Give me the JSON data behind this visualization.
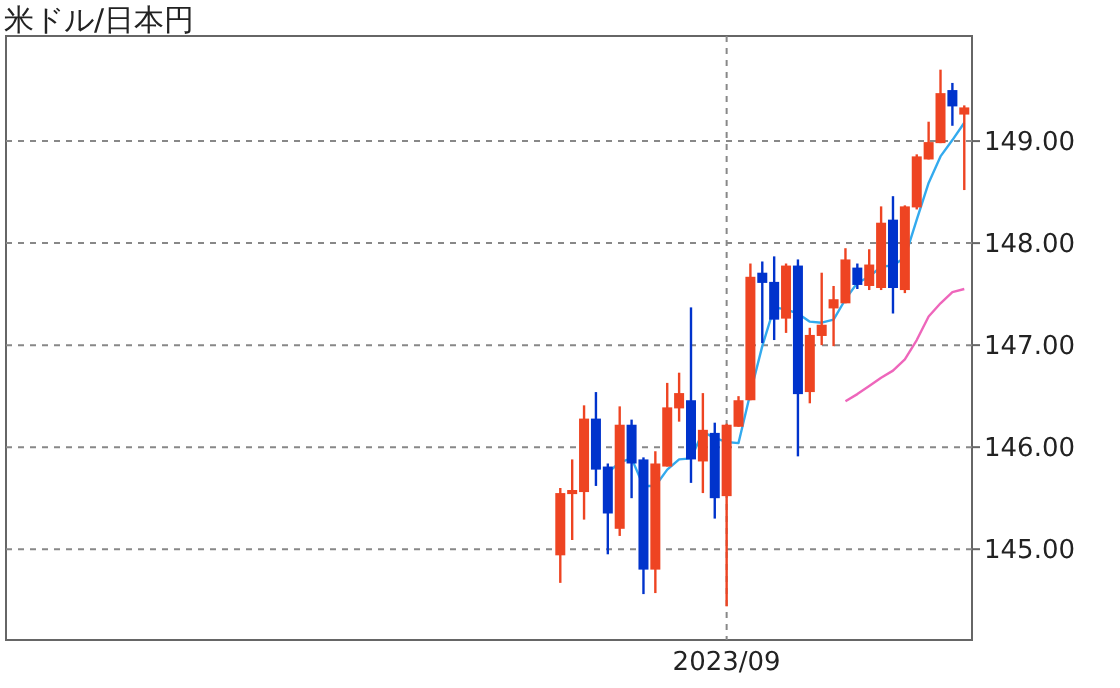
{
  "chart_data": {
    "type": "candlestick",
    "title": "米ドル/日本円",
    "categories": [
      null,
      null,
      null,
      null,
      null,
      null,
      null,
      null,
      null,
      null,
      null,
      null,
      null,
      null,
      null,
      null,
      null,
      null,
      null,
      null,
      null,
      null,
      null,
      null,
      null,
      null,
      null,
      null,
      null,
      null,
      null,
      null,
      null,
      null,
      null,
      null,
      null,
      null,
      null,
      null,
      null,
      null,
      null,
      null,
      null,
      null,
      null,
      null,
      null,
      null,
      null,
      null,
      null,
      null,
      null,
      null,
      null,
      null,
      null,
      null,
      "2023/09",
      null,
      null,
      null,
      null,
      null,
      null,
      null,
      null,
      null,
      null,
      null,
      null,
      null,
      null,
      null,
      null,
      null,
      null,
      null,
      null
    ],
    "ohlc": [
      null,
      null,
      null,
      null,
      null,
      null,
      null,
      null,
      null,
      null,
      null,
      null,
      null,
      null,
      null,
      null,
      null,
      null,
      null,
      null,
      null,
      null,
      null,
      null,
      null,
      null,
      null,
      null,
      null,
      null,
      null,
      null,
      null,
      null,
      null,
      null,
      null,
      null,
      null,
      null,
      null,
      null,
      null,
      null,
      null,
      null,
      [
        144.94,
        145.6,
        144.67,
        145.55
      ],
      [
        145.54,
        145.88,
        145.09,
        145.58
      ],
      [
        145.56,
        146.41,
        145.29,
        146.28
      ],
      [
        146.28,
        146.54,
        145.62,
        145.78
      ],
      [
        145.81,
        145.84,
        144.95,
        145.35
      ],
      [
        145.2,
        146.4,
        145.13,
        146.22
      ],
      [
        146.22,
        146.27,
        145.5,
        145.84
      ],
      [
        145.88,
        145.9,
        144.56,
        144.8
      ],
      [
        144.8,
        145.96,
        144.57,
        145.84
      ],
      [
        145.81,
        146.63,
        145.81,
        146.39
      ],
      [
        146.38,
        146.73,
        146.25,
        146.53
      ],
      [
        146.46,
        147.37,
        145.65,
        145.88
      ],
      [
        145.86,
        146.53,
        145.55,
        146.17
      ],
      [
        146.14,
        146.24,
        145.3,
        145.5
      ],
      [
        145.52,
        146.23,
        144.44,
        146.22
      ],
      [
        146.2,
        146.5,
        146.2,
        146.46
      ],
      [
        146.46,
        147.8,
        146.46,
        147.67
      ],
      [
        147.71,
        147.82,
        147.02,
        147.61
      ],
      [
        147.62,
        147.87,
        147.05,
        147.25
      ],
      [
        147.26,
        147.8,
        147.12,
        147.78
      ],
      [
        147.78,
        147.84,
        145.91,
        146.52
      ],
      [
        146.54,
        147.17,
        146.43,
        147.1
      ],
      [
        147.09,
        147.71,
        147.0,
        147.2
      ],
      [
        147.36,
        147.58,
        146.99,
        147.45
      ],
      [
        147.41,
        147.95,
        147.41,
        147.84
      ],
      [
        147.76,
        147.8,
        147.55,
        147.59
      ],
      [
        147.58,
        147.94,
        147.54,
        147.79
      ],
      [
        147.56,
        148.36,
        147.54,
        148.2
      ],
      [
        148.23,
        148.46,
        147.31,
        147.56
      ],
      [
        147.54,
        148.37,
        147.51,
        148.36
      ],
      [
        148.35,
        148.87,
        148.33,
        148.85
      ],
      [
        148.82,
        149.19,
        148.82,
        148.99
      ],
      [
        148.98,
        149.7,
        148.98,
        149.47
      ],
      [
        149.5,
        149.57,
        149.15,
        149.34
      ],
      [
        149.26,
        149.35,
        148.52,
        149.33
      ]
    ],
    "colors": [
      null,
      null,
      null,
      null,
      null,
      null,
      null,
      null,
      null,
      null,
      null,
      null,
      null,
      null,
      null,
      null,
      null,
      null,
      null,
      null,
      null,
      null,
      null,
      null,
      null,
      null,
      null,
      null,
      null,
      null,
      null,
      null,
      null,
      null,
      null,
      null,
      null,
      null,
      null,
      null,
      null,
      null,
      null,
      null,
      null,
      null,
      "#ee4422",
      "#ee4422",
      "#ee4422",
      "#0033cc",
      "#0033cc",
      "#ee4422",
      "#0033cc",
      "#0033cc",
      "#ee4422",
      "#ee4422",
      "#ee4422",
      "#0033cc",
      "#ee4422",
      "#0033cc",
      "#ee4422",
      "#ee4422",
      "#ee4422",
      "#0033cc",
      "#0033cc",
      "#ee4422",
      "#0033cc",
      "#ee4422",
      "#ee4422",
      "#ee4422",
      "#ee4422",
      "#0033cc",
      "#ee4422",
      "#ee4422",
      "#0033cc",
      "#ee4422",
      "#ee4422",
      "#ee4422",
      "#ee4422",
      "#0033cc",
      "#ee4422"
    ],
    "series": [
      {
        "type": "line",
        "color": "#33aaee",
        "values": [
          null,
          null,
          null,
          null,
          null,
          null,
          null,
          null,
          null,
          null,
          null,
          null,
          null,
          null,
          null,
          null,
          null,
          null,
          null,
          null,
          null,
          null,
          null,
          null,
          null,
          null,
          null,
          null,
          null,
          null,
          null,
          null,
          null,
          null,
          null,
          null,
          null,
          null,
          null,
          null,
          null,
          null,
          null,
          null,
          null,
          null,
          null,
          null,
          null,
          null,
          145.75,
          145.85,
          145.89,
          145.62,
          145.62,
          145.78,
          145.88,
          145.89,
          146.15,
          146.09,
          146.05,
          146.04,
          146.53,
          146.99,
          147.37,
          147.35,
          147.31,
          147.23,
          147.22,
          147.25,
          147.45,
          147.61,
          147.67,
          147.77,
          147.78,
          147.86,
          148.23,
          148.59,
          148.85,
          149.01,
          149.18
        ]
      },
      {
        "type": "line",
        "color": "#ee66bb",
        "values": [
          null,
          null,
          null,
          null,
          null,
          null,
          null,
          null,
          null,
          null,
          null,
          null,
          null,
          null,
          null,
          null,
          null,
          null,
          null,
          null,
          null,
          null,
          null,
          null,
          null,
          null,
          null,
          null,
          null,
          null,
          null,
          null,
          null,
          null,
          null,
          null,
          null,
          null,
          null,
          null,
          null,
          null,
          null,
          null,
          null,
          null,
          null,
          null,
          null,
          null,
          null,
          null,
          null,
          null,
          null,
          null,
          null,
          null,
          null,
          null,
          null,
          null,
          null,
          null,
          null,
          null,
          null,
          null,
          null,
          null,
          146.45,
          146.52,
          146.6,
          146.68,
          146.75,
          146.86,
          147.05,
          147.28,
          147.41,
          147.52,
          147.55
        ]
      }
    ],
    "ylim": [
      144.11,
      150.03
    ],
    "yticks": [
      {
        "value": 145,
        "label": "145.00"
      },
      {
        "value": 146,
        "label": "146.00"
      },
      {
        "value": 147,
        "label": "147.00"
      },
      {
        "value": 148,
        "label": "148.00"
      },
      {
        "value": 149,
        "label": "149.00"
      }
    ],
    "grid": true
  }
}
